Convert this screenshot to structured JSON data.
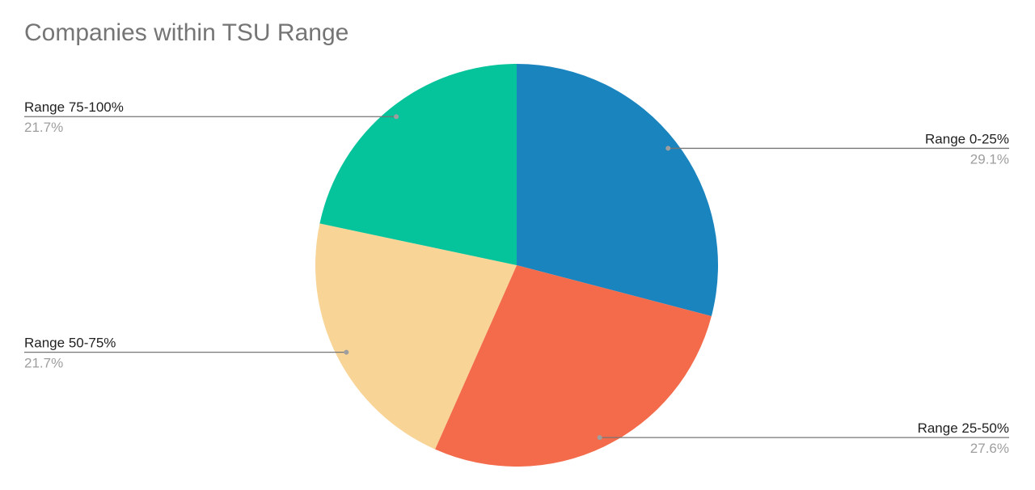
{
  "chart_data": {
    "type": "pie",
    "title": "Companies within TSU Range",
    "categories": [
      "Range 0-25%",
      "Range 25-50%",
      "Range 50-75%",
      "Range 75-100%"
    ],
    "values": [
      29.1,
      27.6,
      21.7,
      21.7
    ],
    "value_labels": [
      "29.1%",
      "27.6%",
      "21.7%",
      "21.7%"
    ],
    "colors": [
      "#1a84bf",
      "#f36b4a",
      "#f8d597",
      "#05c39a"
    ],
    "start_angle": "top",
    "direction": "clockwise",
    "label_style": "leader-lines"
  }
}
